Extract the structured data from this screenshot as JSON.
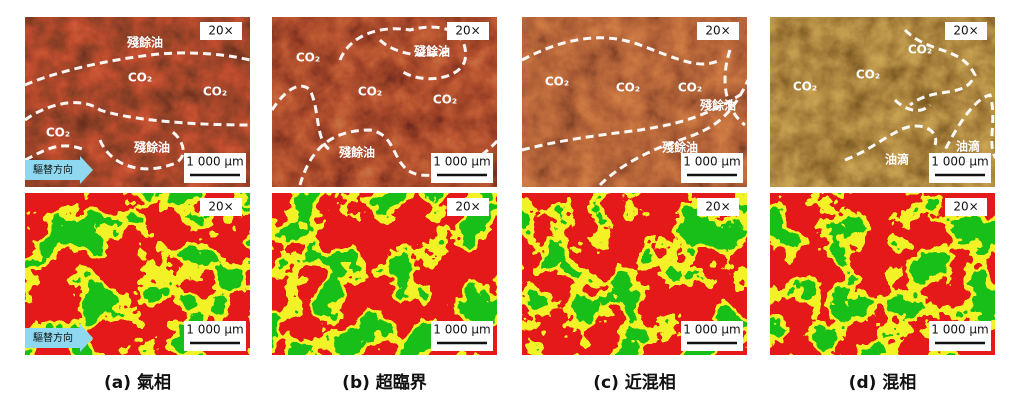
{
  "panels": [
    {
      "caption": "(a) 氣相",
      "top": {
        "magnification": "20×",
        "scale_bar": "1 000 μm",
        "labels": [
          "殘餘油",
          "CO₂",
          "CO₂",
          "CO₂",
          "殘餘油"
        ],
        "direction": "驅替方向"
      },
      "bottom": {
        "magnification": "20×",
        "scale_bar": "1 000 μm",
        "direction": "驅替方向"
      }
    },
    {
      "caption": "(b) 超臨界",
      "top": {
        "magnification": "20×",
        "scale_bar": "1 000 μm",
        "labels": [
          "CO₂",
          "殘餘油",
          "CO₂",
          "CO₂",
          "殘餘油"
        ]
      },
      "bottom": {
        "magnification": "20×",
        "scale_bar": "1 000 μm"
      }
    },
    {
      "caption": "(c) 近混相",
      "top": {
        "magnification": "20×",
        "scale_bar": "1 000 μm",
        "labels": [
          "CO₂",
          "CO₂",
          "CO₂",
          "殘餘油",
          "殘餘油"
        ]
      },
      "bottom": {
        "magnification": "20×",
        "scale_bar": "1 000 μm"
      }
    },
    {
      "caption": "(d) 混相",
      "top": {
        "magnification": "20×",
        "scale_bar": "1 000 μm",
        "labels": [
          "CO₂",
          "CO₂",
          "CO₂",
          "油滴",
          "油滴"
        ]
      },
      "bottom": {
        "magnification": "20×",
        "scale_bar": "1 000 μm"
      }
    }
  ]
}
